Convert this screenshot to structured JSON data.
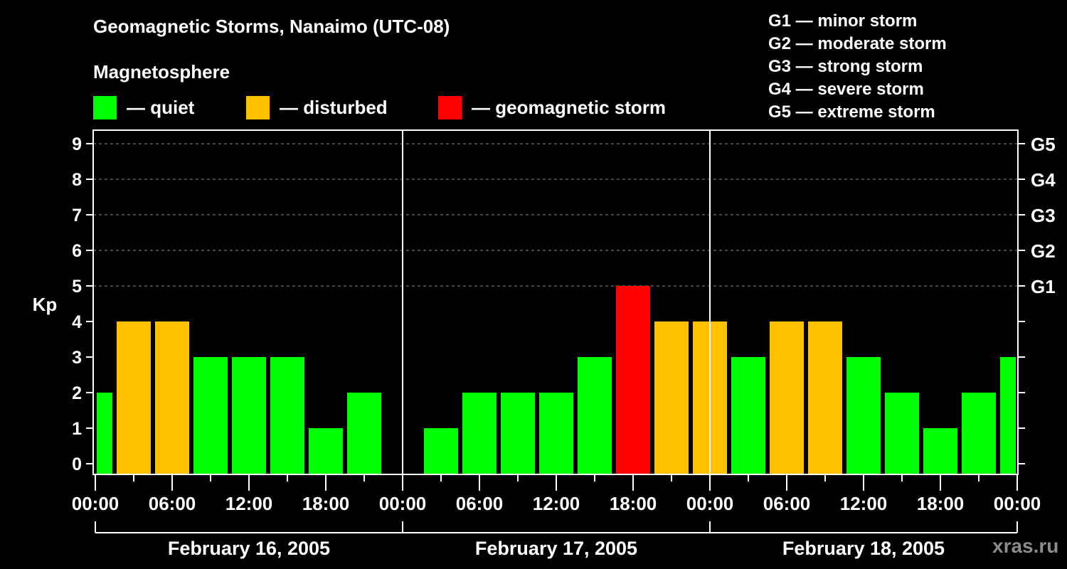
{
  "header": {
    "title": "Geomagnetic Storms, Nanaimo (UTC-08)",
    "subtitle": "Magnetosphere"
  },
  "legend": [
    {
      "label": "— quiet",
      "color": "#00ff00"
    },
    {
      "label": "— disturbed",
      "color": "#ffc000"
    },
    {
      "label": "— geomagnetic storm",
      "color": "#ff0000"
    }
  ],
  "g_scale": [
    "G1 — minor storm",
    "G2 — moderate storm",
    "G3 — strong storm",
    "G4 — severe storm",
    "G5 — extreme storm"
  ],
  "watermark": "xras.ru",
  "chart_data": {
    "type": "bar",
    "title": "Geomagnetic Storms, Nanaimo (UTC-08)",
    "ylabel": "Kp",
    "xlabel": "",
    "ylim": [
      0,
      9
    ],
    "yticks": [
      0,
      1,
      2,
      3,
      4,
      5,
      6,
      7,
      8,
      9
    ],
    "y2_labels": [
      {
        "kp": 5,
        "label": "G1"
      },
      {
        "kp": 6,
        "label": "G2"
      },
      {
        "kp": 7,
        "label": "G3"
      },
      {
        "kp": 8,
        "label": "G4"
      },
      {
        "kp": 9,
        "label": "G5"
      }
    ],
    "grid": "dashed horizontal at Kp 5-9",
    "xtick_labels": [
      "00:00",
      "06:00",
      "12:00",
      "18:00",
      "00:00",
      "06:00",
      "12:00",
      "18:00",
      "00:00",
      "06:00",
      "12:00",
      "18:00",
      "00:00"
    ],
    "days": [
      "February 16, 2005",
      "February 17, 2005",
      "February 18, 2005"
    ],
    "colors": {
      "quiet": "#00ff00",
      "disturbed": "#ffc000",
      "storm": "#ff0000"
    },
    "bars": [
      {
        "start_h": 0,
        "end_h": 1.5,
        "kp": 2,
        "status": "quiet"
      },
      {
        "start_h": 1.5,
        "end_h": 4.5,
        "kp": 4,
        "status": "disturbed"
      },
      {
        "start_h": 4.5,
        "end_h": 7.5,
        "kp": 4,
        "status": "disturbed"
      },
      {
        "start_h": 7.5,
        "end_h": 10.5,
        "kp": 3,
        "status": "quiet"
      },
      {
        "start_h": 10.5,
        "end_h": 13.5,
        "kp": 3,
        "status": "quiet"
      },
      {
        "start_h": 13.5,
        "end_h": 16.5,
        "kp": 3,
        "status": "quiet"
      },
      {
        "start_h": 16.5,
        "end_h": 19.5,
        "kp": 1,
        "status": "quiet"
      },
      {
        "start_h": 19.5,
        "end_h": 22.5,
        "kp": 2,
        "status": "quiet"
      },
      {
        "start_h": 25.5,
        "end_h": 28.5,
        "kp": 1,
        "status": "quiet"
      },
      {
        "start_h": 28.5,
        "end_h": 31.5,
        "kp": 2,
        "status": "quiet"
      },
      {
        "start_h": 31.5,
        "end_h": 34.5,
        "kp": 2,
        "status": "quiet"
      },
      {
        "start_h": 34.5,
        "end_h": 37.5,
        "kp": 2,
        "status": "quiet"
      },
      {
        "start_h": 37.5,
        "end_h": 40.5,
        "kp": 3,
        "status": "quiet"
      },
      {
        "start_h": 40.5,
        "end_h": 43.5,
        "kp": 5,
        "status": "storm"
      },
      {
        "start_h": 43.5,
        "end_h": 46.5,
        "kp": 4,
        "status": "disturbed"
      },
      {
        "start_h": 46.5,
        "end_h": 49.5,
        "kp": 4,
        "status": "disturbed"
      },
      {
        "start_h": 49.5,
        "end_h": 52.5,
        "kp": 3,
        "status": "quiet"
      },
      {
        "start_h": 52.5,
        "end_h": 55.5,
        "kp": 4,
        "status": "disturbed"
      },
      {
        "start_h": 55.5,
        "end_h": 58.5,
        "kp": 4,
        "status": "disturbed"
      },
      {
        "start_h": 58.5,
        "end_h": 61.5,
        "kp": 3,
        "status": "quiet"
      },
      {
        "start_h": 61.5,
        "end_h": 64.5,
        "kp": 2,
        "status": "quiet"
      },
      {
        "start_h": 64.5,
        "end_h": 67.5,
        "kp": 1,
        "status": "quiet"
      },
      {
        "start_h": 67.5,
        "end_h": 70.5,
        "kp": 2,
        "status": "quiet"
      },
      {
        "start_h": 70.5,
        "end_h": 72,
        "kp": 3,
        "status": "quiet"
      }
    ]
  }
}
